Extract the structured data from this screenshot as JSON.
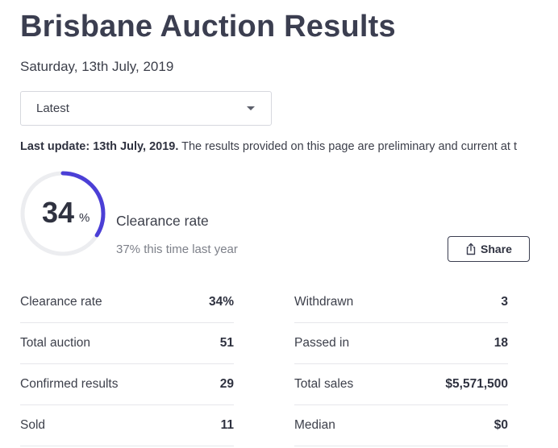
{
  "header": {
    "title": "Brisbane Auction Results",
    "date": "Saturday, 13th July, 2019"
  },
  "select": {
    "value": "Latest"
  },
  "update": {
    "label": "Last update: 13th July, 2019.",
    "text": " The results provided on this page are preliminary and current at t"
  },
  "clearance": {
    "value": "34",
    "unit": "%",
    "fraction": 0.34,
    "label": "Clearance rate",
    "last_year": "37% this time last year",
    "ring_color": "#4b3fd6",
    "track_color": "#ecedf0"
  },
  "share": {
    "label": "Share",
    "icon": "share-icon"
  },
  "stats_left": [
    {
      "label": "Clearance rate",
      "value": "34%"
    },
    {
      "label": "Total auction",
      "value": "51"
    },
    {
      "label": "Confirmed results",
      "value": "29"
    },
    {
      "label": "Sold",
      "value": "11"
    }
  ],
  "stats_right": [
    {
      "label": "Withdrawn",
      "value": "3"
    },
    {
      "label": "Passed in",
      "value": "18"
    },
    {
      "label": "Total sales",
      "value": "$5,571,500"
    },
    {
      "label": "Median",
      "value": "$0"
    }
  ]
}
